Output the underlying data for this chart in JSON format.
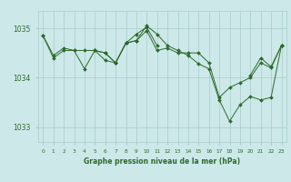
{
  "title": "Graphe pression niveau de la mer (hPa)",
  "bg_color": "#cce8e8",
  "grid_color": "#aacccc",
  "line_color": "#2d6a2d",
  "marker_color": "#2d6a2d",
  "text_color": "#2d6a2d",
  "ylim": [
    1032.7,
    1035.35
  ],
  "yticks": [
    1033,
    1034,
    1035
  ],
  "xlim": [
    -0.5,
    23.5
  ],
  "xticks": [
    0,
    1,
    2,
    3,
    4,
    5,
    6,
    7,
    8,
    9,
    10,
    11,
    12,
    13,
    14,
    15,
    16,
    17,
    18,
    19,
    20,
    21,
    22,
    23
  ],
  "series": [
    [
      1034.85,
      1034.45,
      1034.6,
      1034.55,
      1034.18,
      1034.55,
      1034.5,
      1034.3,
      1034.7,
      1034.75,
      1034.95,
      1034.55,
      1034.6,
      1034.5,
      1034.5,
      1034.5,
      1034.3,
      1033.6,
      1033.8,
      1033.9,
      1034.0,
      1034.3,
      1034.2,
      1034.65
    ],
    [
      1034.85,
      1034.4,
      1034.55,
      1034.55,
      1034.55,
      1034.55,
      1034.35,
      1034.3,
      1034.7,
      1034.88,
      1035.02,
      1034.65,
      null,
      null,
      null,
      null,
      null,
      null,
      null,
      null,
      null,
      null,
      null,
      null
    ],
    [
      null,
      null,
      null,
      null,
      null,
      1034.55,
      1034.5,
      1034.3,
      1034.7,
      1034.75,
      1035.05,
      1034.88,
      1034.65,
      1034.55,
      1034.45,
      1034.28,
      1034.18,
      1033.55,
      1033.12,
      1033.45,
      1033.62,
      1033.55,
      1033.6,
      1034.65
    ],
    [
      null,
      null,
      null,
      null,
      null,
      null,
      null,
      null,
      null,
      null,
      null,
      null,
      null,
      null,
      null,
      null,
      null,
      null,
      null,
      null,
      1034.05,
      1034.4,
      1034.22,
      1034.65
    ]
  ]
}
